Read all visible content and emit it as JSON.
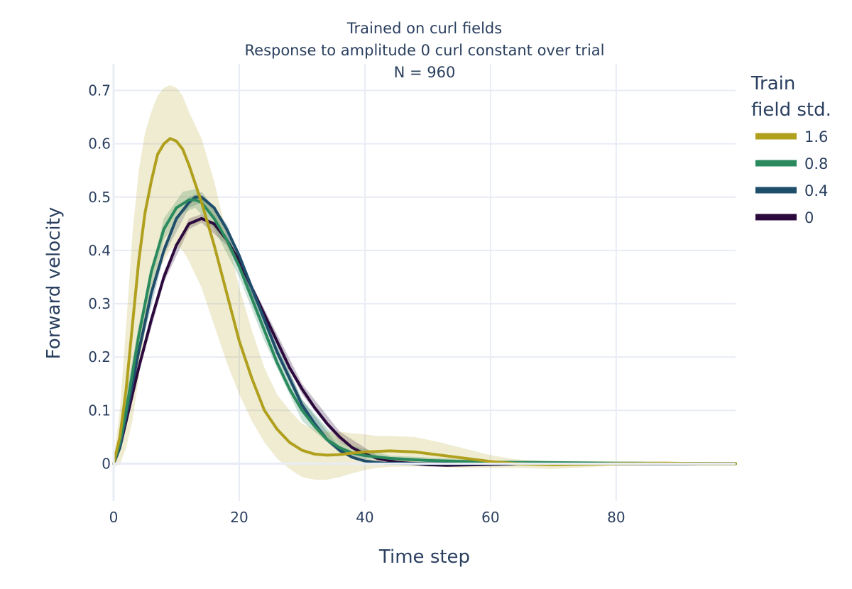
{
  "chart_data": {
    "type": "line",
    "title_lines": [
      "Trained on curl fields",
      "Response to amplitude 0 curl constant over trial",
      "N = 960"
    ],
    "xlabel": "Time step",
    "ylabel": "Forward velocity",
    "xlim": [
      0,
      99
    ],
    "ylim": [
      -0.07,
      0.75
    ],
    "xticks": [
      0,
      20,
      40,
      60,
      80
    ],
    "yticks": [
      0,
      0.1,
      0.2,
      0.3,
      0.4,
      0.5,
      0.6,
      0.7
    ],
    "x_tick_labels": [
      "0",
      "20",
      "40",
      "60",
      "80"
    ],
    "y_tick_labels": [
      "0",
      "0.1",
      "0.2",
      "0.3",
      "0.4",
      "0.5",
      "0.6",
      "0.7"
    ],
    "grid": true,
    "legend": {
      "title_lines": [
        "Train",
        "field std."
      ],
      "position": "right"
    },
    "series": [
      {
        "name": "0",
        "color": "#2c0a3d",
        "points": [
          [
            0,
            0
          ],
          [
            1,
            0.03
          ],
          [
            2,
            0.08
          ],
          [
            4,
            0.18
          ],
          [
            6,
            0.27
          ],
          [
            8,
            0.35
          ],
          [
            10,
            0.41
          ],
          [
            12,
            0.45
          ],
          [
            14,
            0.46
          ],
          [
            16,
            0.45
          ],
          [
            18,
            0.42
          ],
          [
            20,
            0.38
          ],
          [
            22,
            0.33
          ],
          [
            24,
            0.28
          ],
          [
            26,
            0.23
          ],
          [
            28,
            0.18
          ],
          [
            30,
            0.14
          ],
          [
            32,
            0.105
          ],
          [
            34,
            0.075
          ],
          [
            36,
            0.05
          ],
          [
            38,
            0.03
          ],
          [
            40,
            0.018
          ],
          [
            42,
            0.01
          ],
          [
            45,
            0.003
          ],
          [
            50,
            -0.002
          ],
          [
            53,
            -0.003
          ],
          [
            58,
            -0.002
          ],
          [
            65,
            0
          ],
          [
            80,
            0
          ],
          [
            99,
            0
          ]
        ],
        "band": [
          [
            0,
            0,
            0
          ],
          [
            4,
            0.17,
            0.19
          ],
          [
            8,
            0.34,
            0.36
          ],
          [
            12,
            0.44,
            0.46
          ],
          [
            14,
            0.452,
            0.468
          ],
          [
            18,
            0.41,
            0.43
          ],
          [
            24,
            0.27,
            0.29
          ],
          [
            30,
            0.13,
            0.15
          ],
          [
            36,
            0.04,
            0.06
          ],
          [
            42,
            0.005,
            0.015
          ],
          [
            50,
            -0.005,
            0.001
          ],
          [
            60,
            -0.004,
            0.002
          ],
          [
            99,
            0,
            0
          ]
        ]
      },
      {
        "name": "0.4",
        "color": "#1f4e6b",
        "points": [
          [
            0,
            0
          ],
          [
            1,
            0.03
          ],
          [
            2,
            0.09
          ],
          [
            4,
            0.21
          ],
          [
            6,
            0.32
          ],
          [
            8,
            0.4
          ],
          [
            10,
            0.46
          ],
          [
            12,
            0.49
          ],
          [
            13,
            0.5
          ],
          [
            14,
            0.5
          ],
          [
            16,
            0.48
          ],
          [
            18,
            0.44
          ],
          [
            20,
            0.39
          ],
          [
            22,
            0.33
          ],
          [
            24,
            0.27
          ],
          [
            26,
            0.21
          ],
          [
            28,
            0.16
          ],
          [
            30,
            0.11
          ],
          [
            32,
            0.075
          ],
          [
            34,
            0.045
          ],
          [
            36,
            0.025
          ],
          [
            38,
            0.012
          ],
          [
            40,
            0.005
          ],
          [
            43,
            0.001
          ],
          [
            50,
            0
          ],
          [
            60,
            0
          ],
          [
            99,
            0
          ]
        ],
        "band": [
          [
            0,
            0,
            0
          ],
          [
            4,
            0.2,
            0.22
          ],
          [
            8,
            0.39,
            0.41
          ],
          [
            12,
            0.48,
            0.5
          ],
          [
            14,
            0.49,
            0.51
          ],
          [
            18,
            0.43,
            0.45
          ],
          [
            24,
            0.26,
            0.28
          ],
          [
            30,
            0.1,
            0.12
          ],
          [
            36,
            0.02,
            0.03
          ],
          [
            42,
            0,
            0.004
          ],
          [
            60,
            -0.001,
            0.001
          ],
          [
            99,
            0,
            0
          ]
        ]
      },
      {
        "name": "0.8",
        "color": "#2a8a5e",
        "points": [
          [
            0,
            0
          ],
          [
            1,
            0.04
          ],
          [
            2,
            0.1
          ],
          [
            4,
            0.24
          ],
          [
            6,
            0.36
          ],
          [
            8,
            0.44
          ],
          [
            10,
            0.48
          ],
          [
            12,
            0.495
          ],
          [
            13,
            0.495
          ],
          [
            14,
            0.49
          ],
          [
            16,
            0.46
          ],
          [
            18,
            0.42
          ],
          [
            20,
            0.37
          ],
          [
            22,
            0.31
          ],
          [
            24,
            0.25
          ],
          [
            26,
            0.19
          ],
          [
            28,
            0.14
          ],
          [
            30,
            0.1
          ],
          [
            32,
            0.07
          ],
          [
            34,
            0.045
          ],
          [
            36,
            0.03
          ],
          [
            38,
            0.02
          ],
          [
            40,
            0.015
          ],
          [
            44,
            0.01
          ],
          [
            50,
            0.006
          ],
          [
            60,
            0.003
          ],
          [
            70,
            0.002
          ],
          [
            80,
            0.001
          ],
          [
            99,
            0
          ]
        ],
        "band": [
          [
            0,
            0,
            0
          ],
          [
            4,
            0.22,
            0.26
          ],
          [
            8,
            0.42,
            0.46
          ],
          [
            11,
            0.47,
            0.51
          ],
          [
            13,
            0.48,
            0.515
          ],
          [
            16,
            0.44,
            0.48
          ],
          [
            20,
            0.35,
            0.39
          ],
          [
            24,
            0.23,
            0.27
          ],
          [
            30,
            0.08,
            0.12
          ],
          [
            36,
            0.02,
            0.04
          ],
          [
            44,
            0.005,
            0.015
          ],
          [
            60,
            0,
            0.006
          ],
          [
            99,
            0,
            0
          ]
        ]
      },
      {
        "name": "1.6",
        "color": "#b0a01e",
        "points": [
          [
            0,
            0
          ],
          [
            1,
            0.05
          ],
          [
            2,
            0.14
          ],
          [
            3,
            0.26
          ],
          [
            4,
            0.38
          ],
          [
            5,
            0.47
          ],
          [
            6,
            0.53
          ],
          [
            7,
            0.58
          ],
          [
            8,
            0.6
          ],
          [
            9,
            0.61
          ],
          [
            10,
            0.605
          ],
          [
            11,
            0.59
          ],
          [
            12,
            0.56
          ],
          [
            14,
            0.49
          ],
          [
            16,
            0.41
          ],
          [
            18,
            0.32
          ],
          [
            20,
            0.23
          ],
          [
            22,
            0.16
          ],
          [
            24,
            0.1
          ],
          [
            26,
            0.065
          ],
          [
            28,
            0.04
          ],
          [
            30,
            0.025
          ],
          [
            32,
            0.018
          ],
          [
            34,
            0.016
          ],
          [
            36,
            0.017
          ],
          [
            38,
            0.02
          ],
          [
            40,
            0.022
          ],
          [
            42,
            0.023
          ],
          [
            44,
            0.024
          ],
          [
            48,
            0.022
          ],
          [
            52,
            0.016
          ],
          [
            56,
            0.01
          ],
          [
            60,
            0.004
          ],
          [
            64,
            0
          ],
          [
            70,
            -0.002
          ],
          [
            80,
            0
          ],
          [
            88,
            0.001
          ],
          [
            94,
            0
          ],
          [
            99,
            0
          ]
        ],
        "band": [
          [
            0,
            -0.005,
            0.01
          ],
          [
            1,
            -0.002,
            0.1
          ],
          [
            2,
            0.03,
            0.26
          ],
          [
            3,
            0.08,
            0.43
          ],
          [
            4,
            0.16,
            0.55
          ],
          [
            5,
            0.25,
            0.62
          ],
          [
            6,
            0.31,
            0.66
          ],
          [
            7,
            0.36,
            0.69
          ],
          [
            8,
            0.38,
            0.705
          ],
          [
            9,
            0.4,
            0.71
          ],
          [
            10,
            0.41,
            0.705
          ],
          [
            11,
            0.4,
            0.69
          ],
          [
            12,
            0.38,
            0.66
          ],
          [
            14,
            0.33,
            0.61
          ],
          [
            16,
            0.26,
            0.53
          ],
          [
            18,
            0.19,
            0.43
          ],
          [
            20,
            0.13,
            0.33
          ],
          [
            22,
            0.08,
            0.25
          ],
          [
            24,
            0.04,
            0.18
          ],
          [
            26,
            0.01,
            0.13
          ],
          [
            28,
            -0.01,
            0.1
          ],
          [
            30,
            -0.025,
            0.075
          ],
          [
            32,
            -0.03,
            0.065
          ],
          [
            34,
            -0.03,
            0.06
          ],
          [
            36,
            -0.025,
            0.06
          ],
          [
            38,
            -0.018,
            0.057
          ],
          [
            40,
            -0.012,
            0.055
          ],
          [
            42,
            -0.008,
            0.052
          ],
          [
            44,
            -0.006,
            0.052
          ],
          [
            48,
            -0.005,
            0.05
          ],
          [
            52,
            -0.006,
            0.04
          ],
          [
            56,
            -0.008,
            0.028
          ],
          [
            60,
            -0.008,
            0.016
          ],
          [
            64,
            -0.008,
            0.008
          ],
          [
            70,
            -0.01,
            0.005
          ],
          [
            80,
            -0.004,
            0.005
          ],
          [
            88,
            -0.002,
            0.004
          ],
          [
            94,
            -0.001,
            0.002
          ],
          [
            99,
            0,
            0
          ]
        ]
      }
    ],
    "legend_order": [
      "1.6",
      "0.8",
      "0.4",
      "0"
    ]
  }
}
